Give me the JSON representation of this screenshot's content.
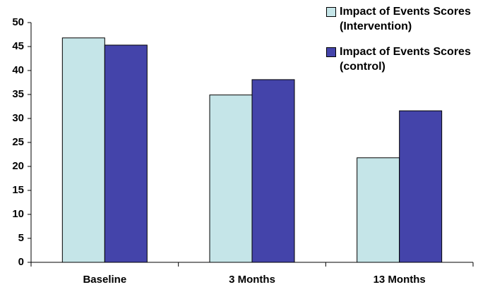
{
  "chart_data": {
    "type": "bar",
    "categories": [
      "Baseline",
      "3 Months",
      "13 Months"
    ],
    "series": [
      {
        "name": "Impact of Events Scores (Intervention)",
        "color": "#c5e5e8",
        "values": [
          46.8,
          34.9,
          21.8
        ]
      },
      {
        "name": "Impact of Events Scores (control)",
        "color": "#4444aa",
        "values": [
          45.3,
          38.1,
          31.6
        ]
      }
    ],
    "ylim": [
      0,
      50
    ],
    "yticks": [
      0,
      5,
      10,
      15,
      20,
      25,
      30,
      35,
      40,
      45,
      50
    ],
    "grid": false,
    "legend": "top-right"
  }
}
